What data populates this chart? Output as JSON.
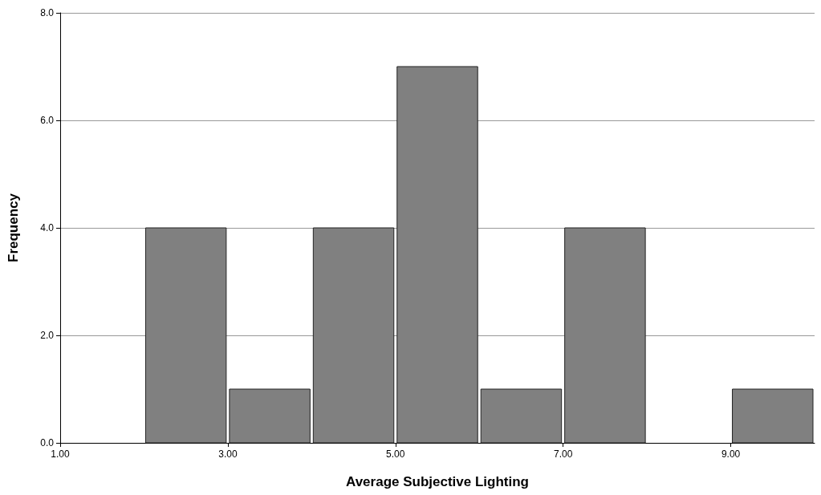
{
  "chart_data": {
    "type": "histogram",
    "xlabel": "Average Subjective Lighting",
    "ylabel": "Frequency",
    "bins": [
      1,
      2,
      3,
      4,
      5,
      6,
      7,
      8,
      9,
      10
    ],
    "values": [
      0,
      4,
      1,
      4,
      7,
      1,
      4,
      0,
      1
    ],
    "color": "#808080",
    "xlim": [
      1,
      10
    ],
    "xticks": [
      {
        "value": 1,
        "label": "1.00"
      },
      {
        "value": 3,
        "label": "3.00"
      },
      {
        "value": 5,
        "label": "5.00"
      },
      {
        "value": 7,
        "label": "7.00"
      },
      {
        "value": 9,
        "label": "9.00"
      }
    ],
    "ylim": [
      0,
      8
    ],
    "yticks": [
      {
        "value": 0,
        "label": "0.0"
      },
      {
        "value": 2,
        "label": "2.0"
      },
      {
        "value": 4,
        "label": "4.0"
      },
      {
        "value": 6,
        "label": "6.0"
      },
      {
        "value": 8,
        "label": "8.0"
      }
    ],
    "grid": "y"
  }
}
